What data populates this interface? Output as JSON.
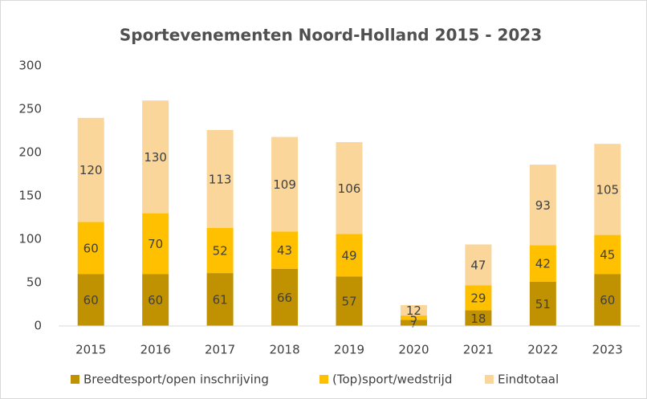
{
  "chart_data": {
    "type": "stacked_bar",
    "title": "Sportevenementen Noord-Holland 2015 - 2023",
    "categories": [
      "2015",
      "2016",
      "2017",
      "2018",
      "2019",
      "2020",
      "2021",
      "2022",
      "2023"
    ],
    "series": [
      {
        "name": "Breedtesport/open inschrijving",
        "color": "#c09100",
        "values": [
          60,
          60,
          61,
          66,
          57,
          7,
          18,
          51,
          60
        ]
      },
      {
        "name": "(Top)sport/wedstrijd",
        "color": "#ffc000",
        "values": [
          60,
          70,
          52,
          43,
          49,
          5,
          29,
          42,
          45
        ]
      },
      {
        "name": "Eindtotaal",
        "color": "#fad69a",
        "values": [
          120,
          130,
          113,
          109,
          106,
          12,
          47,
          93,
          105
        ]
      }
    ],
    "ylim": [
      0,
      300
    ],
    "yticks": [
      0,
      50,
      100,
      150,
      200,
      250,
      300
    ],
    "grid": false,
    "legend": "bottom"
  }
}
